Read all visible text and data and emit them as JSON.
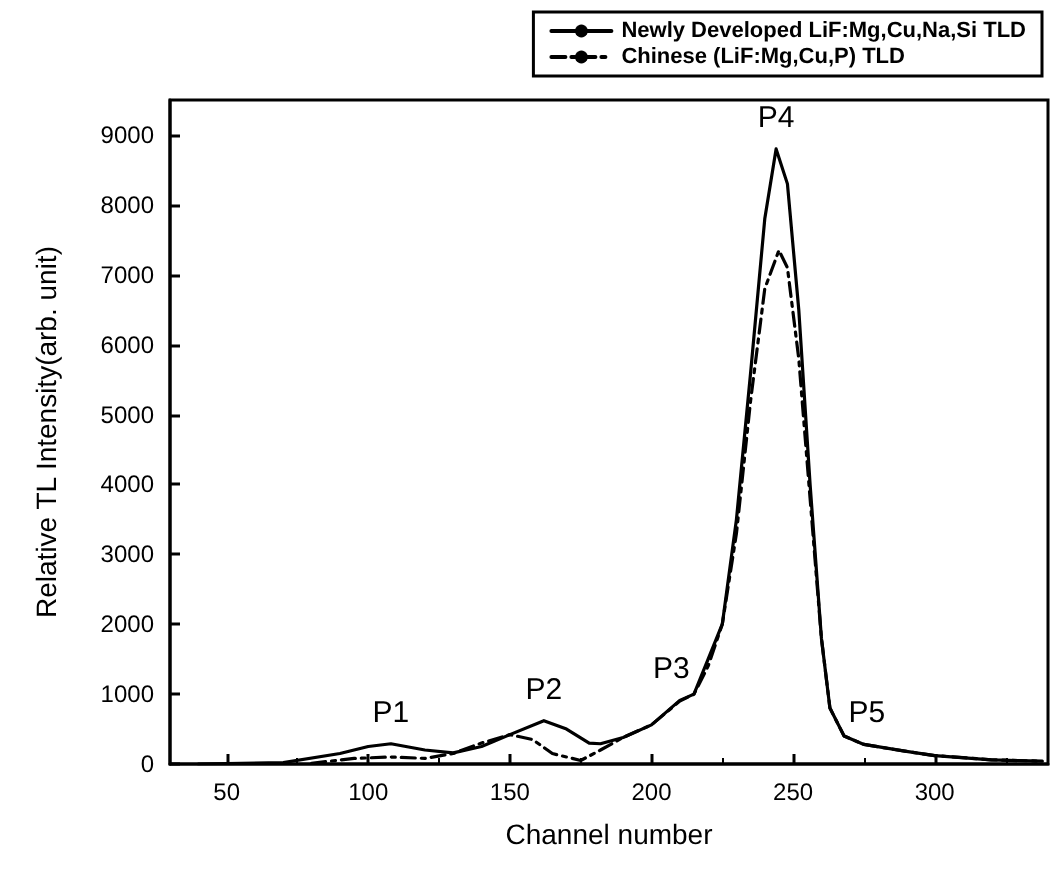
{
  "chart_data": {
    "type": "line",
    "xlabel": "Channel number",
    "ylabel": "Relative TL Intensity(arb. unit)",
    "xlim": [
      30,
      340
    ],
    "xticks": [
      50,
      100,
      150,
      200,
      250,
      300
    ],
    "ylim": [
      0,
      9500
    ],
    "yticks": [
      0,
      1000,
      2000,
      3000,
      4000,
      5000,
      6000,
      7000,
      8000,
      9000
    ],
    "grid": false,
    "legend": "top right",
    "marker": "none",
    "series": [
      {
        "name": "Newly Developed LiF:Mg,Cu,Na,Si TLD",
        "color": "#000000",
        "line_style": "solid",
        "x": [
          40,
          70,
          90,
          100,
          108,
          120,
          130,
          140,
          150,
          162,
          170,
          178,
          182,
          190,
          200,
          210,
          215,
          220,
          225,
          230,
          235,
          240,
          244,
          248,
          252,
          256,
          260,
          263,
          268,
          275,
          290,
          300,
          320,
          338
        ],
        "values": [
          0,
          20,
          150,
          250,
          290,
          200,
          160,
          250,
          420,
          620,
          500,
          300,
          290,
          380,
          560,
          910,
          1000,
          1500,
          2000,
          3500,
          5600,
          7800,
          8800,
          8300,
          6500,
          4000,
          1800,
          800,
          400,
          280,
          180,
          120,
          60,
          40
        ]
      },
      {
        "name": "Chinese (LiF:Mg,Cu,P) TLD",
        "color": "#000000",
        "line_style": "dashed",
        "x": [
          80,
          95,
          108,
          120,
          130,
          140,
          150,
          158,
          165,
          175,
          182,
          190,
          200,
          210,
          215,
          220,
          225,
          230,
          235,
          240,
          245,
          248,
          252,
          256,
          260,
          263,
          268,
          275,
          290,
          300,
          320,
          338
        ],
        "values": [
          10,
          80,
          100,
          80,
          150,
          300,
          420,
          350,
          150,
          50,
          200,
          380,
          560,
          900,
          1000,
          1400,
          2000,
          3300,
          5200,
          6800,
          7350,
          7100,
          5800,
          3800,
          1800,
          800,
          400,
          280,
          180,
          120,
          60,
          40
        ]
      }
    ],
    "annotations": [
      {
        "text": "P1",
        "x": 108,
        "y": 290
      },
      {
        "text": "P2",
        "x": 162,
        "y": 620
      },
      {
        "text": "P3",
        "x": 207,
        "y": 910
      },
      {
        "text": "P4",
        "x": 244,
        "y": 8800
      },
      {
        "text": "P5",
        "x": 276,
        "y": 280
      }
    ]
  }
}
